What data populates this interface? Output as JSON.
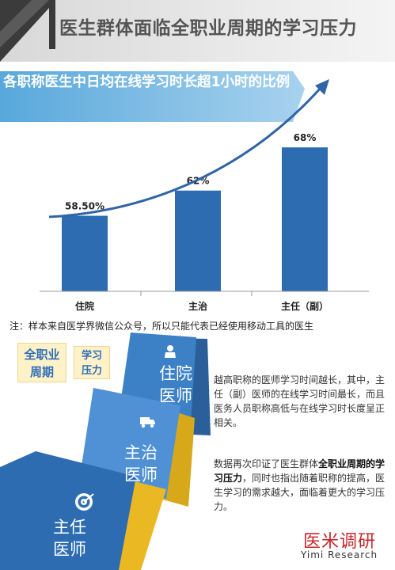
{
  "header": {
    "title": "医生群体面临全职业周期的学习压力"
  },
  "chart_data": {
    "type": "bar",
    "title": "各职称医生中日均在线学习时长超1小时的比例",
    "categories": [
      "住院",
      "主治",
      "主任（副）"
    ],
    "values": [
      58.5,
      62,
      68
    ],
    "data_labels": [
      "58.50%",
      "62%",
      "68%"
    ],
    "ylim": [
      48,
      70
    ],
    "xlabel": "",
    "ylabel": "",
    "grid": false,
    "colors": {
      "bar": "#2e6cb2",
      "trend_arrow": "#2f64a6"
    }
  },
  "note": "注：样本来自医学界微信公众号，所以只能代表已经使用移动工具的医生",
  "tags": {
    "career": [
      "全职业",
      "周期"
    ],
    "study": [
      "学习",
      "压力"
    ]
  },
  "cards": [
    {
      "icon": "doctor-icon",
      "lines": [
        "住院",
        "医师"
      ]
    },
    {
      "icon": "ambulance-icon",
      "lines": [
        "主治",
        "医师"
      ]
    },
    {
      "icon": "target-icon",
      "lines": [
        "主任",
        "医师"
      ]
    }
  ],
  "description": {
    "p1": "越高职称的医师学习时间越长，其中，主任（副）医师的在线学习时间最长，而且医务人员职称高低与在线学习时长度呈正相关。",
    "p2_before": "数据再次印证了医生群体",
    "p2_bold": "全职业周期的学习压力",
    "p2_after": "，同时也指出随着职称的提高，医生学习的需求越大，面临着更大的学习压力。"
  },
  "brand": {
    "cn": "医米调研",
    "en": "Yimi Research"
  },
  "colors": {
    "header_dark": "#3d3d3d",
    "blue": "#2e6cb2",
    "light_blue": "#9fc5e8",
    "gold": "#e6b91e"
  }
}
